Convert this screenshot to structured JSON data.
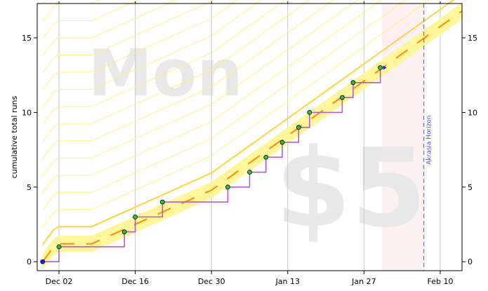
{
  "chart_data": {
    "type": "line",
    "title": "",
    "xlabel": "",
    "ylabel": "cumulative total runs",
    "ylim": [
      -0.6,
      17.3
    ],
    "xlim": [
      "2024-11-28",
      "2025-02-14"
    ],
    "x_ticks": [
      {
        "date": "2024-12-02",
        "label": "Dec 02"
      },
      {
        "date": "2024-12-16",
        "label": "Dec 16"
      },
      {
        "date": "2024-12-30",
        "label": "Dec 30"
      },
      {
        "date": "2025-01-13",
        "label": "Jan 13"
      },
      {
        "date": "2025-01-27",
        "label": "Jan 27"
      },
      {
        "date": "2025-02-10",
        "label": "Feb 10"
      }
    ],
    "y_ticks": [
      0,
      5,
      10,
      15
    ],
    "grid": "vertical",
    "watermarks": {
      "day": "Mon",
      "pledge": "$5"
    },
    "horizon": {
      "date": "2025-02-07",
      "label": "Akrasia Horizon"
    },
    "datapoints": [
      {
        "x": "2024-11-29",
        "y": 0
      },
      {
        "x": "2024-12-02",
        "y": 1
      },
      {
        "x": "2024-12-14",
        "y": 2
      },
      {
        "x": "2024-12-16",
        "y": 3
      },
      {
        "x": "2024-12-21",
        "y": 4
      },
      {
        "x": "2025-01-02",
        "y": 5
      },
      {
        "x": "2025-01-06",
        "y": 6
      },
      {
        "x": "2025-01-09",
        "y": 7
      },
      {
        "x": "2025-01-12",
        "y": 8
      },
      {
        "x": "2025-01-15",
        "y": 9
      },
      {
        "x": "2025-01-17",
        "y": 10
      },
      {
        "x": "2025-01-23",
        "y": 11
      },
      {
        "x": "2025-01-25",
        "y": 12
      },
      {
        "x": "2025-01-30",
        "y": 13
      }
    ],
    "yellow_brick_road": [
      {
        "x": "2024-11-29",
        "y": 0
      },
      {
        "x": "2024-12-01",
        "y": 1
      },
      {
        "x": "2024-12-02",
        "y": 1.2
      },
      {
        "x": "2024-12-08",
        "y": 1.2
      },
      {
        "x": "2024-12-30",
        "y": 4.8
      },
      {
        "x": "2025-02-14",
        "y": 16.8
      }
    ],
    "road_width": 0.55,
    "series": [
      {
        "name": "",
        "color": "#ff8c00",
        "values": []
      }
    ],
    "colors": {
      "road": "#fff59a",
      "road_center": "#ff8c00",
      "road_edge": "#ffd33d",
      "guidelines": "#fff27a",
      "progress_line": "#b45cc4",
      "point_fill": "#2ec02e",
      "point_stroke": "#000000",
      "current_point": "#1a1aff",
      "horizon": "#4a4aff",
      "future_region": "#fdf0f0",
      "grid": "#c8c8c8"
    }
  }
}
